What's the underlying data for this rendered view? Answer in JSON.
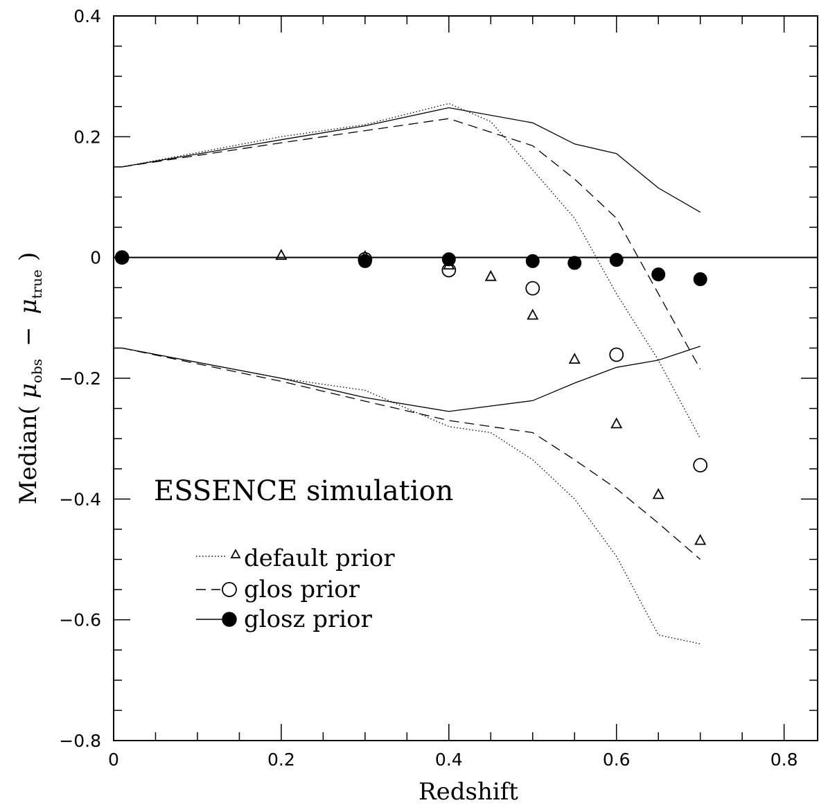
{
  "chart_data": {
    "type": "scatter",
    "xlabel": "Redshift",
    "ylabel_parts": {
      "prefix": "Median(",
      "mu1": "μ",
      "sub1": "obs",
      "minus": "−",
      "mu2": "μ",
      "sub2": "true",
      "suffix": ")"
    },
    "annotation": "ESSENCE simulation",
    "xlim": [
      0,
      0.84
    ],
    "ylim": [
      -0.8,
      0.4
    ],
    "x_ticks": [
      {
        "value": 0,
        "label": "0"
      },
      {
        "value": 0.2,
        "label": "0.2"
      },
      {
        "value": 0.4,
        "label": "0.4"
      },
      {
        "value": 0.6,
        "label": "0.6"
      },
      {
        "value": 0.8,
        "label": "0.8"
      }
    ],
    "y_ticks": [
      {
        "value": 0.4,
        "label": "0.4"
      },
      {
        "value": 0.2,
        "label": "0.2"
      },
      {
        "value": 0,
        "label": "0"
      },
      {
        "value": -0.2,
        "label": "−0.2"
      },
      {
        "value": -0.4,
        "label": "−0.4"
      },
      {
        "value": -0.6,
        "label": "−0.6"
      },
      {
        "value": -0.8,
        "label": "−0.8"
      }
    ],
    "x_minor_step": 0.05,
    "y_minor_step": 0.05,
    "zero_line": 0,
    "legend": [
      {
        "label": "default prior",
        "line": "dotted",
        "marker": "triangle"
      },
      {
        "label": "glos prior",
        "line": "dashed",
        "marker": "open-circle"
      },
      {
        "label": "glosz prior",
        "line": "solid",
        "marker": "filled-circle"
      }
    ],
    "series": [
      {
        "name": "default prior",
        "marker": "triangle",
        "line": "dotted",
        "points": [
          [
            0.01,
            0.0
          ],
          [
            0.2,
            0.004
          ],
          [
            0.3,
            0.002
          ],
          [
            0.4,
            -0.012
          ],
          [
            0.45,
            -0.031
          ],
          [
            0.5,
            -0.095
          ],
          [
            0.55,
            -0.168
          ],
          [
            0.6,
            -0.275
          ],
          [
            0.65,
            -0.392
          ],
          [
            0.7,
            -0.468
          ]
        ],
        "upper": [
          [
            0.01,
            0.15
          ],
          [
            0.2,
            0.2
          ],
          [
            0.3,
            0.22
          ],
          [
            0.4,
            0.255
          ],
          [
            0.45,
            0.225
          ],
          [
            0.5,
            0.145
          ],
          [
            0.55,
            0.065
          ],
          [
            0.6,
            -0.06
          ],
          [
            0.65,
            -0.17
          ],
          [
            0.7,
            -0.3
          ]
        ],
        "lower": [
          [
            0.01,
            -0.15
          ],
          [
            0.2,
            -0.2
          ],
          [
            0.3,
            -0.22
          ],
          [
            0.4,
            -0.28
          ],
          [
            0.45,
            -0.29
          ],
          [
            0.5,
            -0.335
          ],
          [
            0.55,
            -0.4
          ],
          [
            0.6,
            -0.495
          ],
          [
            0.65,
            -0.625
          ],
          [
            0.7,
            -0.64
          ]
        ]
      },
      {
        "name": "glos prior",
        "marker": "open-circle",
        "line": "dashed",
        "points": [
          [
            0.01,
            0.0
          ],
          [
            0.3,
            -0.003
          ],
          [
            0.4,
            -0.021
          ],
          [
            0.5,
            -0.051
          ],
          [
            0.6,
            -0.161
          ],
          [
            0.7,
            -0.344
          ]
        ],
        "upper": [
          [
            0.01,
            0.15
          ],
          [
            0.2,
            0.19
          ],
          [
            0.3,
            0.21
          ],
          [
            0.4,
            0.23
          ],
          [
            0.5,
            0.185
          ],
          [
            0.55,
            0.13
          ],
          [
            0.6,
            0.065
          ],
          [
            0.65,
            -0.06
          ],
          [
            0.7,
            -0.185
          ]
        ],
        "lower": [
          [
            0.01,
            -0.15
          ],
          [
            0.2,
            -0.205
          ],
          [
            0.3,
            -0.238
          ],
          [
            0.4,
            -0.27
          ],
          [
            0.5,
            -0.29
          ],
          [
            0.55,
            -0.335
          ],
          [
            0.6,
            -0.383
          ],
          [
            0.65,
            -0.44
          ],
          [
            0.7,
            -0.5
          ]
        ]
      },
      {
        "name": "glosz prior",
        "marker": "filled-circle",
        "line": "solid",
        "points": [
          [
            0.01,
            0.0
          ],
          [
            0.3,
            -0.006
          ],
          [
            0.4,
            -0.003
          ],
          [
            0.5,
            -0.006
          ],
          [
            0.55,
            -0.009
          ],
          [
            0.6,
            -0.004
          ],
          [
            0.65,
            -0.028
          ],
          [
            0.7,
            -0.036
          ]
        ],
        "upper": [
          [
            0.01,
            0.15
          ],
          [
            0.2,
            0.195
          ],
          [
            0.3,
            0.218
          ],
          [
            0.4,
            0.248
          ],
          [
            0.5,
            0.223
          ],
          [
            0.55,
            0.188
          ],
          [
            0.6,
            0.172
          ],
          [
            0.65,
            0.115
          ],
          [
            0.7,
            0.075
          ]
        ],
        "lower": [
          [
            0.01,
            -0.15
          ],
          [
            0.2,
            -0.2
          ],
          [
            0.3,
            -0.232
          ],
          [
            0.4,
            -0.255
          ],
          [
            0.5,
            -0.237
          ],
          [
            0.55,
            -0.208
          ],
          [
            0.6,
            -0.182
          ],
          [
            0.65,
            -0.17
          ],
          [
            0.7,
            -0.147
          ]
        ]
      }
    ]
  }
}
